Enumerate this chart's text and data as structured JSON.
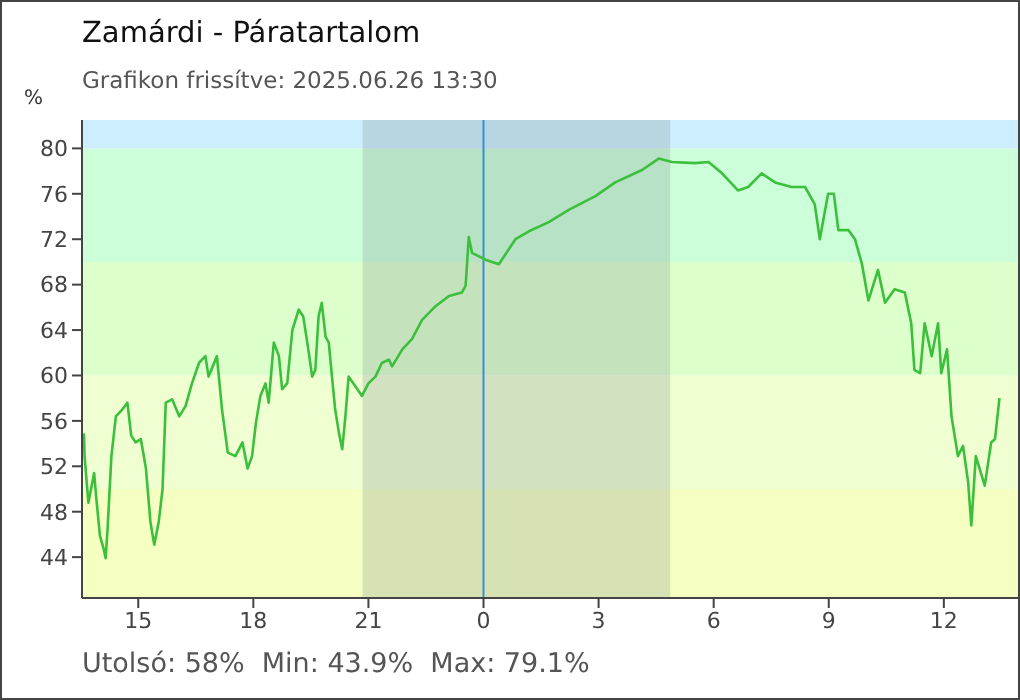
{
  "chart_data": {
    "type": "line",
    "title": "Zamárdi - Páratartalom",
    "subtitle": "Grafikon frissítve: 2025.06.26 13:30",
    "ylabel": "%",
    "annotations": [
      "Utolsó: 58%  Min: 43.9%  Max: 79.1%"
    ],
    "xlim": [
      "2025-06-25T13:32",
      "2025-06-26T13:56"
    ],
    "ylim": [
      40.4,
      82.5
    ],
    "xticks": [
      {
        "value": "2025-06-25T15:00",
        "label": "15"
      },
      {
        "value": "2025-06-25T18:00",
        "label": "18"
      },
      {
        "value": "2025-06-25T21:00",
        "label": "21"
      },
      {
        "value": "2025-06-26T00:00",
        "label": "0"
      },
      {
        "value": "2025-06-26T03:00",
        "label": "3"
      },
      {
        "value": "2025-06-26T06:00",
        "label": "6"
      },
      {
        "value": "2025-06-26T09:00",
        "label": "9"
      },
      {
        "value": "2025-06-26T12:00",
        "label": "12"
      }
    ],
    "yticks": [
      44,
      48,
      52,
      56,
      60,
      64,
      68,
      72,
      76,
      80
    ],
    "grid": false,
    "legend": false,
    "bands": [
      {
        "axis": "y",
        "from": 40.4,
        "to": 50,
        "label": null,
        "color": "#f5ffc2"
      },
      {
        "axis": "y",
        "from": 50,
        "to": 60,
        "label": null,
        "color": "#efffd2"
      },
      {
        "axis": "y",
        "from": 60,
        "to": 70,
        "label": null,
        "color": "#ddffcc"
      },
      {
        "axis": "y",
        "from": 70,
        "to": 80,
        "label": null,
        "color": "#ccffd9"
      },
      {
        "axis": "y",
        "from": 80,
        "to": 82.5,
        "label": null,
        "color": "#cceeff"
      },
      {
        "axis": "x",
        "from": "2025-06-25T20:51",
        "to": "2025-06-26T04:52",
        "label": null,
        "color": "#7a8a8a"
      }
    ],
    "ref_lines": [
      {
        "axis": "x",
        "value": "2025-06-26T00:00",
        "label": null,
        "color": "#3c8fcf"
      }
    ],
    "series": [
      {
        "color": "#3cbf3c",
        "x": [
          "2025-06-25T13:35",
          "2025-06-25T13:36",
          "2025-06-25T13:42",
          "2025-06-25T13:51",
          "2025-06-25T13:54",
          "2025-06-25T14:00",
          "2025-06-25T14:06",
          "2025-06-25T14:09",
          "2025-06-25T14:12",
          "2025-06-25T14:18",
          "2025-06-25T14:25",
          "2025-06-25T14:35",
          "2025-06-25T14:43",
          "2025-06-25T14:49",
          "2025-06-25T14:56",
          "2025-06-25T15:04",
          "2025-06-25T15:12",
          "2025-06-25T15:19",
          "2025-06-25T15:25",
          "2025-06-25T15:32",
          "2025-06-25T15:38",
          "2025-06-25T15:43",
          "2025-06-25T15:53",
          "2025-06-25T16:04",
          "2025-06-25T16:14",
          "2025-06-25T16:24",
          "2025-06-25T16:35",
          "2025-06-25T16:45",
          "2025-06-25T16:50",
          "2025-06-25T17:03",
          "2025-06-25T17:11",
          "2025-06-25T17:20",
          "2025-06-25T17:32",
          "2025-06-25T17:43",
          "2025-06-25T17:51",
          "2025-06-25T17:58",
          "2025-06-25T18:04",
          "2025-06-25T18:11",
          "2025-06-25T18:19",
          "2025-06-25T18:24",
          "2025-06-25T18:32",
          "2025-06-25T18:40",
          "2025-06-25T18:45",
          "2025-06-25T18:53",
          "2025-06-25T19:01",
          "2025-06-25T19:11",
          "2025-06-25T19:18",
          "2025-06-25T19:26",
          "2025-06-25T19:32",
          "2025-06-25T19:37",
          "2025-06-25T19:42",
          "2025-06-25T19:47",
          "2025-06-25T19:53",
          "2025-06-25T19:58",
          "2025-06-25T20:03",
          "2025-06-25T20:08",
          "2025-06-25T20:14",
          "2025-06-25T20:19",
          "2025-06-25T20:24",
          "2025-06-25T20:29",
          "2025-06-25T20:40",
          "2025-06-25T20:50",
          "2025-06-25T21:00",
          "2025-06-25T21:11",
          "2025-06-25T21:21",
          "2025-06-25T21:32",
          "2025-06-25T21:37",
          "2025-06-25T21:53",
          "2025-06-25T22:08",
          "2025-06-25T22:24",
          "2025-06-25T22:45",
          "2025-06-25T23:06",
          "2025-06-25T23:26",
          "2025-06-25T23:32",
          "2025-06-25T23:37",
          "2025-06-25T23:42",
          "2025-06-26T00:03",
          "2025-06-26T00:24",
          "2025-06-26T00:50",
          "2025-06-26T01:11",
          "2025-06-26T01:42",
          "2025-06-26T02:14",
          "2025-06-26T02:55",
          "2025-06-26T03:26",
          "2025-06-26T04:08",
          "2025-06-26T04:34",
          "2025-06-26T04:55",
          "2025-06-26T05:31",
          "2025-06-26T05:52",
          "2025-06-26T06:13",
          "2025-06-26T06:38",
          "2025-06-26T06:54",
          "2025-06-26T07:15",
          "2025-06-26T07:36",
          "2025-06-26T08:02",
          "2025-06-26T08:23",
          "2025-06-26T08:38",
          "2025-06-26T08:46",
          "2025-06-26T08:59",
          "2025-06-26T09:08",
          "2025-06-26T09:15",
          "2025-06-26T09:31",
          "2025-06-26T09:41",
          "2025-06-26T09:52",
          "2025-06-26T10:02",
          "2025-06-26T10:17",
          "2025-06-26T10:28",
          "2025-06-26T10:43",
          "2025-06-26T10:59",
          "2025-06-26T11:09",
          "2025-06-26T11:14",
          "2025-06-26T11:23",
          "2025-06-26T11:30",
          "2025-06-26T11:41",
          "2025-06-26T11:51",
          "2025-06-26T11:56",
          "2025-06-26T12:05",
          "2025-06-26T12:12",
          "2025-06-26T12:22",
          "2025-06-26T12:30",
          "2025-06-26T12:38",
          "2025-06-26T12:43",
          "2025-06-26T12:50",
          "2025-06-26T13:04",
          "2025-06-26T13:14",
          "2025-06-26T13:20",
          "2025-06-26T13:27"
        ],
        "values": [
          54.9,
          52.9,
          48.8,
          51.4,
          49.4,
          45.9,
          44.7,
          43.9,
          46.5,
          52.9,
          56.4,
          57.0,
          57.6,
          54.7,
          54.1,
          54.4,
          51.8,
          47.1,
          45.1,
          47.1,
          50.0,
          57.6,
          57.9,
          56.4,
          57.3,
          59.3,
          61.1,
          61.7,
          59.9,
          61.7,
          57.0,
          53.2,
          52.9,
          54.1,
          51.8,
          52.9,
          55.8,
          58.2,
          59.3,
          57.6,
          62.9,
          61.7,
          58.8,
          59.3,
          64.0,
          65.8,
          65.2,
          62.3,
          59.9,
          60.5,
          65.2,
          66.4,
          63.4,
          62.9,
          59.9,
          57.0,
          54.9,
          53.5,
          56.4,
          59.9,
          59.0,
          58.2,
          59.3,
          59.9,
          61.1,
          61.4,
          60.8,
          62.3,
          63.2,
          64.9,
          66.1,
          67.0,
          67.3,
          67.9,
          72.2,
          70.8,
          70.2,
          69.8,
          72.0,
          72.7,
          73.5,
          74.6,
          75.8,
          77.0,
          78.1,
          79.1,
          78.8,
          78.7,
          78.8,
          77.8,
          76.3,
          76.6,
          77.8,
          77.0,
          76.6,
          76.6,
          75.1,
          72.0,
          76.0,
          76.0,
          72.8,
          72.8,
          72.0,
          69.8,
          66.6,
          69.3,
          66.4,
          67.6,
          67.3,
          64.6,
          60.5,
          60.2,
          64.6,
          61.7,
          64.6,
          60.2,
          62.3,
          56.4,
          52.9,
          53.8,
          50.6,
          46.8,
          52.9,
          50.3,
          54.1,
          54.4,
          58.0
        ]
      }
    ]
  }
}
